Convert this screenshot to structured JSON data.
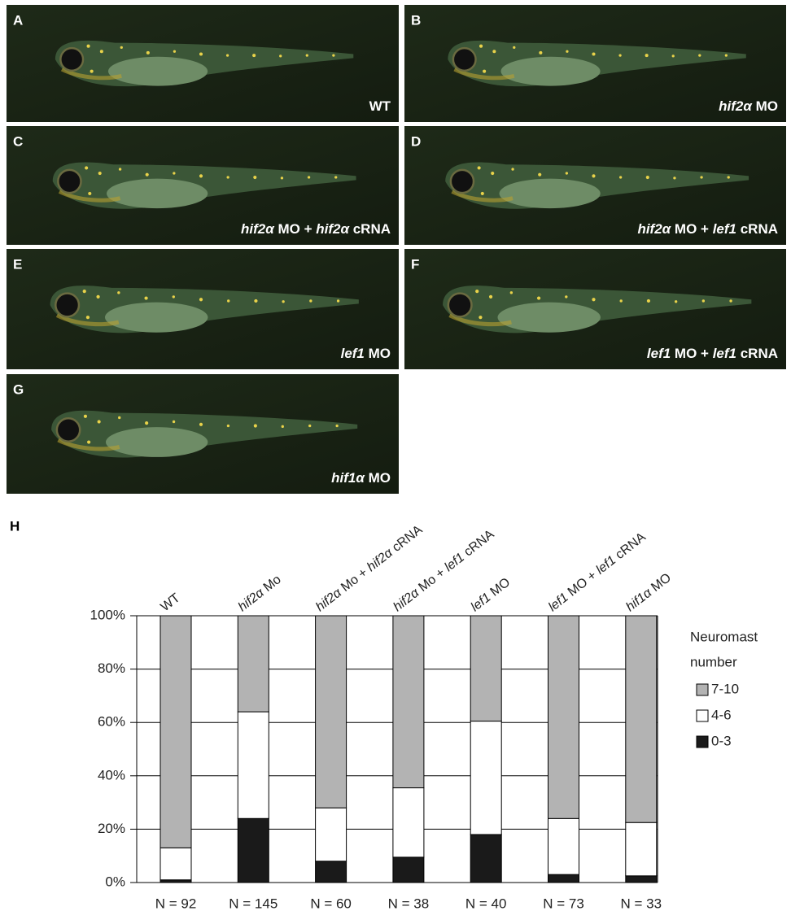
{
  "panels": [
    {
      "label": "A",
      "caption": [
        {
          "text": "WT",
          "italic": false
        }
      ]
    },
    {
      "label": "B",
      "caption": [
        {
          "text": "hif2α",
          "italic": true
        },
        {
          "text": " MO",
          "italic": false
        }
      ]
    },
    {
      "label": "C",
      "caption": [
        {
          "text": "hif2α",
          "italic": true
        },
        {
          "text": " MO + ",
          "italic": false
        },
        {
          "text": "hif2α",
          "italic": true
        },
        {
          "text": " cRNA",
          "italic": false
        }
      ]
    },
    {
      "label": "D",
      "caption": [
        {
          "text": "hif2α",
          "italic": true
        },
        {
          "text": " MO + ",
          "italic": false
        },
        {
          "text": "lef1",
          "italic": true
        },
        {
          "text": " cRNA",
          "italic": false
        }
      ]
    },
    {
      "label": "E",
      "caption": [
        {
          "text": "lef1",
          "italic": true
        },
        {
          "text": " MO",
          "italic": false
        }
      ]
    },
    {
      "label": "F",
      "caption": [
        {
          "text": "lef1",
          "italic": true
        },
        {
          "text": " MO + ",
          "italic": false
        },
        {
          "text": "lef1",
          "italic": true
        },
        {
          "text": " cRNA",
          "italic": false
        }
      ]
    },
    {
      "label": "G",
      "caption": [
        {
          "text": "hif1α",
          "italic": true
        },
        {
          "text": " MO",
          "italic": false
        }
      ]
    }
  ],
  "chart_data": {
    "type": "stacked_bar",
    "panel_label": "H",
    "categories": [
      [
        {
          "text": "WT",
          "italic": false
        }
      ],
      [
        {
          "text": "hif2α",
          "italic": true
        },
        {
          "text": " Mo",
          "italic": false
        }
      ],
      [
        {
          "text": "hif2α",
          "italic": true
        },
        {
          "text": " Mo + ",
          "italic": false
        },
        {
          "text": "hif2α",
          "italic": true
        },
        {
          "text": " cRNA",
          "italic": false
        }
      ],
      [
        {
          "text": "hif2α",
          "italic": true
        },
        {
          "text": " Mo + ",
          "italic": false
        },
        {
          "text": "lef1",
          "italic": true
        },
        {
          "text": " cRNA",
          "italic": false
        }
      ],
      [
        {
          "text": "lef1",
          "italic": true
        },
        {
          "text": " MO",
          "italic": false
        }
      ],
      [
        {
          "text": "lef1",
          "italic": true
        },
        {
          "text": " MO + ",
          "italic": false
        },
        {
          "text": "lef1",
          "italic": true
        },
        {
          "text": " cRNA",
          "italic": false
        }
      ],
      [
        {
          "text": "hif1α",
          "italic": true
        },
        {
          "text": " MO",
          "italic": false
        }
      ]
    ],
    "n_labels": [
      "N = 92",
      "N = 145",
      "N = 60",
      "N = 38",
      "N = 40",
      "N = 73",
      "N = 33"
    ],
    "series": [
      {
        "name": "0-3",
        "color": "#1a1a1a",
        "values": [
          1,
          24,
          8,
          9.5,
          18,
          3,
          2.5
        ]
      },
      {
        "name": "4-6",
        "color": "#ffffff",
        "values": [
          12,
          40,
          20,
          26,
          42.5,
          21,
          20
        ]
      },
      {
        "name": "7-10",
        "color": "#b3b3b3",
        "values": [
          87,
          36,
          72,
          64.5,
          39.5,
          76,
          77.5
        ]
      }
    ],
    "legend_title": [
      "Neuromast",
      "number"
    ],
    "legend": "right",
    "ylim": [
      0,
      100
    ],
    "yticks": [
      {
        "value": 0,
        "label": "0%"
      },
      {
        "value": 20,
        "label": "20%"
      },
      {
        "value": 40,
        "label": "40%"
      },
      {
        "value": 60,
        "label": "60%"
      },
      {
        "value": 80,
        "label": "80%"
      },
      {
        "value": 100,
        "label": "100%"
      }
    ],
    "grid": true
  }
}
